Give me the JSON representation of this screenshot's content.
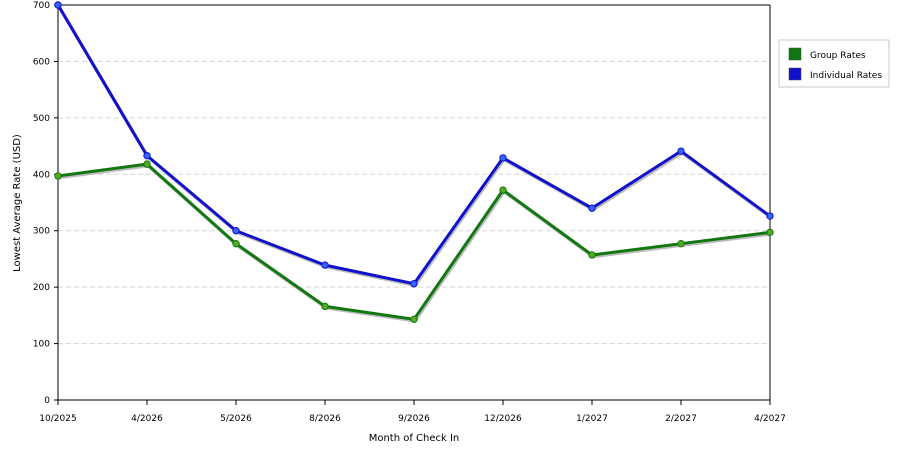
{
  "chart_data": {
    "type": "line",
    "title": "",
    "xlabel": "Month of Check In",
    "ylabel": "Lowest Average Rate (USD)",
    "categories": [
      "10/2025",
      "4/2026",
      "5/2026",
      "8/2026",
      "9/2026",
      "12/2026",
      "1/2027",
      "2/2027",
      "4/2027"
    ],
    "ylim": [
      0,
      700
    ],
    "yticks": [
      "0",
      "100",
      "200",
      "300",
      "400",
      "500",
      "600",
      "700"
    ],
    "grid": "horizontal dashed",
    "legend_position": "right",
    "series": [
      {
        "name": "Group Rates",
        "color": "#117711",
        "marker_color": "#55aa22",
        "values": [
          397,
          418,
          277,
          166,
          143,
          372,
          257,
          277,
          297
        ]
      },
      {
        "name": "Individual Rates",
        "color": "#1111cc",
        "marker_color": "#3366ff",
        "values": [
          700,
          433,
          300,
          239,
          206,
          429,
          340,
          441,
          326
        ]
      }
    ]
  }
}
